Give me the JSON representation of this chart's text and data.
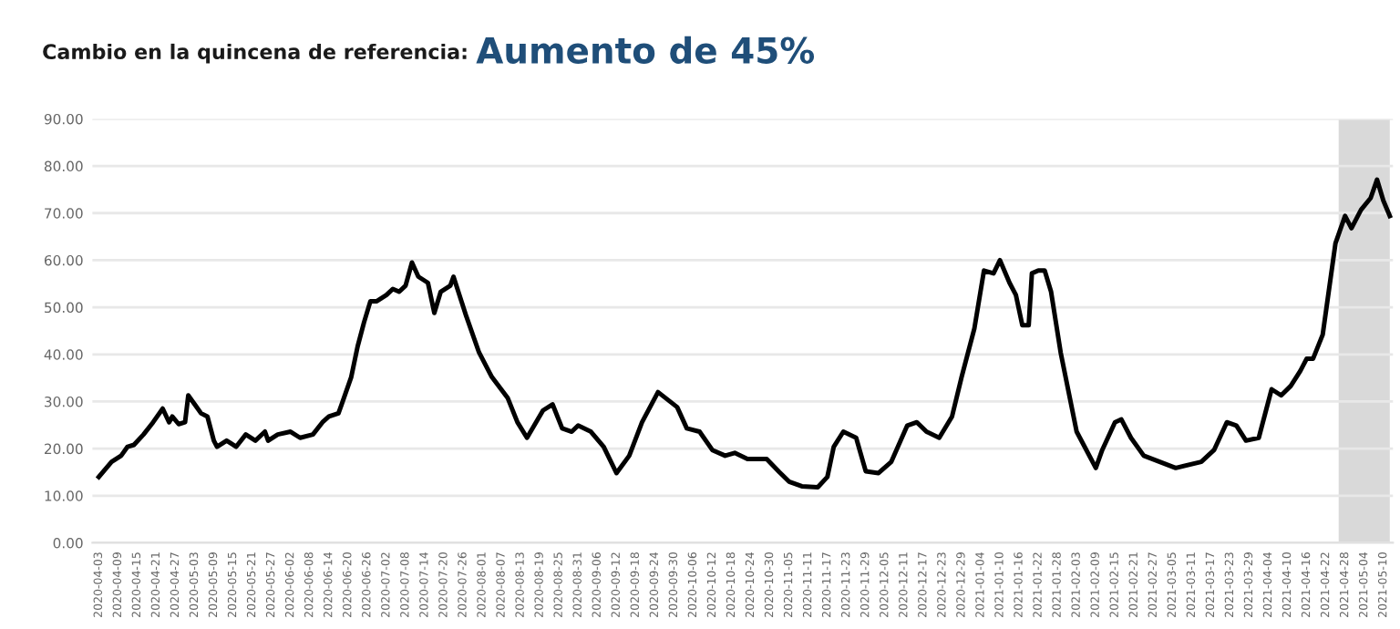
{
  "chart_data": {
    "type": "line",
    "title": "Cambio en la quincena de referencia:",
    "subtitle": "Aumento de 45%",
    "x": [
      "2020-04-03",
      "2020-04-07",
      "2020-04-10",
      "2020-04-12",
      "2020-04-14",
      "2020-04-17",
      "2020-04-20",
      "2020-04-23",
      "2020-04-25",
      "2020-04-26",
      "2020-04-28",
      "2020-04-30",
      "2020-05-01",
      "2020-05-03",
      "2020-05-05",
      "2020-05-07",
      "2020-05-09",
      "2020-05-10",
      "2020-05-13",
      "2020-05-16",
      "2020-05-19",
      "2020-05-22",
      "2020-05-25",
      "2020-05-26",
      "2020-05-29",
      "2020-06-02",
      "2020-06-05",
      "2020-06-09",
      "2020-06-12",
      "2020-06-14",
      "2020-06-17",
      "2020-06-18",
      "2020-06-21",
      "2020-06-23",
      "2020-06-25",
      "2020-06-27",
      "2020-06-29",
      "2020-07-02",
      "2020-07-04",
      "2020-07-06",
      "2020-07-08",
      "2020-07-10",
      "2020-07-12",
      "2020-07-15",
      "2020-07-17",
      "2020-07-19",
      "2020-07-22",
      "2020-07-23",
      "2020-07-27",
      "2020-07-31",
      "2020-08-04",
      "2020-08-09",
      "2020-08-12",
      "2020-08-15",
      "2020-08-20",
      "2020-08-23",
      "2020-08-26",
      "2020-08-29",
      "2020-08-31",
      "2020-09-04",
      "2020-09-08",
      "2020-09-12",
      "2020-09-16",
      "2020-09-20",
      "2020-09-25",
      "2020-10-01",
      "2020-10-04",
      "2020-10-08",
      "2020-10-12",
      "2020-10-16",
      "2020-10-19",
      "2020-10-23",
      "2020-10-29",
      "2020-11-02",
      "2020-11-05",
      "2020-11-09",
      "2020-11-14",
      "2020-11-17",
      "2020-11-19",
      "2020-11-22",
      "2020-11-26",
      "2020-11-29",
      "2020-12-03",
      "2020-12-07",
      "2020-12-12",
      "2020-12-15",
      "2020-12-18",
      "2020-12-22",
      "2020-12-26",
      "2020-12-29",
      "2021-01-02",
      "2021-01-05",
      "2021-01-08",
      "2021-01-10",
      "2021-01-13",
      "2021-01-15",
      "2021-01-17",
      "2021-01-19",
      "2021-01-20",
      "2021-01-22",
      "2021-01-24",
      "2021-01-26",
      "2021-01-29",
      "2021-02-03",
      "2021-02-09",
      "2021-02-11",
      "2021-02-15",
      "2021-02-17",
      "2021-02-20",
      "2021-02-24",
      "2021-03-01",
      "2021-03-06",
      "2021-03-14",
      "2021-03-18",
      "2021-03-22",
      "2021-03-25",
      "2021-03-28",
      "2021-04-01",
      "2021-04-05",
      "2021-04-08",
      "2021-04-11",
      "2021-04-14",
      "2021-04-16",
      "2021-04-18",
      "2021-04-21",
      "2021-04-25",
      "2021-04-28",
      "2021-04-30",
      "2021-05-03",
      "2021-05-06",
      "2021-05-08",
      "2021-05-10",
      "2021-05-12"
    ],
    "series": [
      {
        "color": "#000000",
        "values": [
          14,
          17.2,
          18.5,
          20.4,
          20.8,
          23,
          25.6,
          28.5,
          25.6,
          26.8,
          25.2,
          25.6,
          31.3,
          29.4,
          27.5,
          26.8,
          21.7,
          20.4,
          21.7,
          20.4,
          23,
          21.7,
          23.6,
          21.7,
          23,
          23.6,
          22.3,
          23,
          25.6,
          26.8,
          27.5,
          29.4,
          35.2,
          41.7,
          46.8,
          51.3,
          51.3,
          52.6,
          53.9,
          53.3,
          54.6,
          59.5,
          56.5,
          55.2,
          48.8,
          53.3,
          54.6,
          56.5,
          48.1,
          40.4,
          35.2,
          30.7,
          25.6,
          22.3,
          28.1,
          29.4,
          24.3,
          23.6,
          24.9,
          23.6,
          20.4,
          14.8,
          18.5,
          25.6,
          32,
          28.8,
          24.3,
          23.6,
          19.7,
          18.5,
          19.1,
          17.8,
          17.8,
          15,
          13,
          12,
          11.8,
          14,
          20.4,
          23.6,
          22.3,
          15.2,
          14.8,
          17.2,
          24.9,
          25.6,
          23.6,
          22.3,
          26.8,
          35.2,
          45.5,
          57.8,
          57.2,
          60,
          55.2,
          52.6,
          46.2,
          46.2,
          57.2,
          57.8,
          57.8,
          53.3,
          40.4,
          23.6,
          15.9,
          19.7,
          25.6,
          26.2,
          22.3,
          18.5,
          17.2,
          15.9,
          17.2,
          19.7,
          25.6,
          24.9,
          21.7,
          22.3,
          32.6,
          31.3,
          33.3,
          36.5,
          39.1,
          39.1,
          44.2,
          63.6,
          69.4,
          66.8,
          70.7,
          73.2,
          77.1,
          72.6,
          69.4
        ]
      }
    ],
    "xlim": [
      "2020-04-01",
      "2021-05-13"
    ],
    "xticks": [
      "2020-04-03",
      "2020-04-09",
      "2020-04-15",
      "2020-04-21",
      "2020-04-27",
      "2020-05-03",
      "2020-05-09",
      "2020-05-15",
      "2020-05-21",
      "2020-05-27",
      "2020-06-02",
      "2020-06-08",
      "2020-06-14",
      "2020-06-20",
      "2020-06-26",
      "2020-07-02",
      "2020-07-08",
      "2020-07-14",
      "2020-07-20",
      "2020-07-26",
      "2020-08-01",
      "2020-08-07",
      "2020-08-13",
      "2020-08-19",
      "2020-08-25",
      "2020-08-31",
      "2020-09-06",
      "2020-09-12",
      "2020-09-18",
      "2020-09-24",
      "2020-09-30",
      "2020-10-06",
      "2020-10-12",
      "2020-10-18",
      "2020-10-24",
      "2020-10-30",
      "2020-11-05",
      "2020-11-11",
      "2020-11-17",
      "2020-11-23",
      "2020-11-29",
      "2020-12-05",
      "2020-12-11",
      "2020-12-17",
      "2020-12-23",
      "2020-12-29",
      "2021-01-04",
      "2021-01-10",
      "2021-01-16",
      "2021-01-22",
      "2021-01-28",
      "2021-02-03",
      "2021-02-09",
      "2021-02-15",
      "2021-02-21",
      "2021-02-27",
      "2021-03-05",
      "2021-03-11",
      "2021-03-17",
      "2021-03-23",
      "2021-03-29",
      "2021-04-04",
      "2021-04-10",
      "2021-04-16",
      "2021-04-22",
      "2021-04-28",
      "2021-05-04",
      "2021-05-10"
    ],
    "ylim": [
      0,
      90
    ],
    "yticks": [
      {
        "value": 0,
        "label": "0.00"
      },
      {
        "value": 10,
        "label": "10.00"
      },
      {
        "value": 20,
        "label": "20.00"
      },
      {
        "value": 30,
        "label": "30.00"
      },
      {
        "value": 40,
        "label": "40.00"
      },
      {
        "value": 50,
        "label": "50.00"
      },
      {
        "value": 60,
        "label": "60.00"
      },
      {
        "value": 70,
        "label": "70.00"
      },
      {
        "value": 80,
        "label": "80.00"
      },
      {
        "value": 90,
        "label": "90.00"
      }
    ],
    "bands": [
      {
        "axis": "x",
        "from": "2021-04-26",
        "to": "2021-05-12",
        "color": "#d9d9d9"
      }
    ],
    "grid": "y",
    "marker": "none",
    "line_style": "solid"
  }
}
